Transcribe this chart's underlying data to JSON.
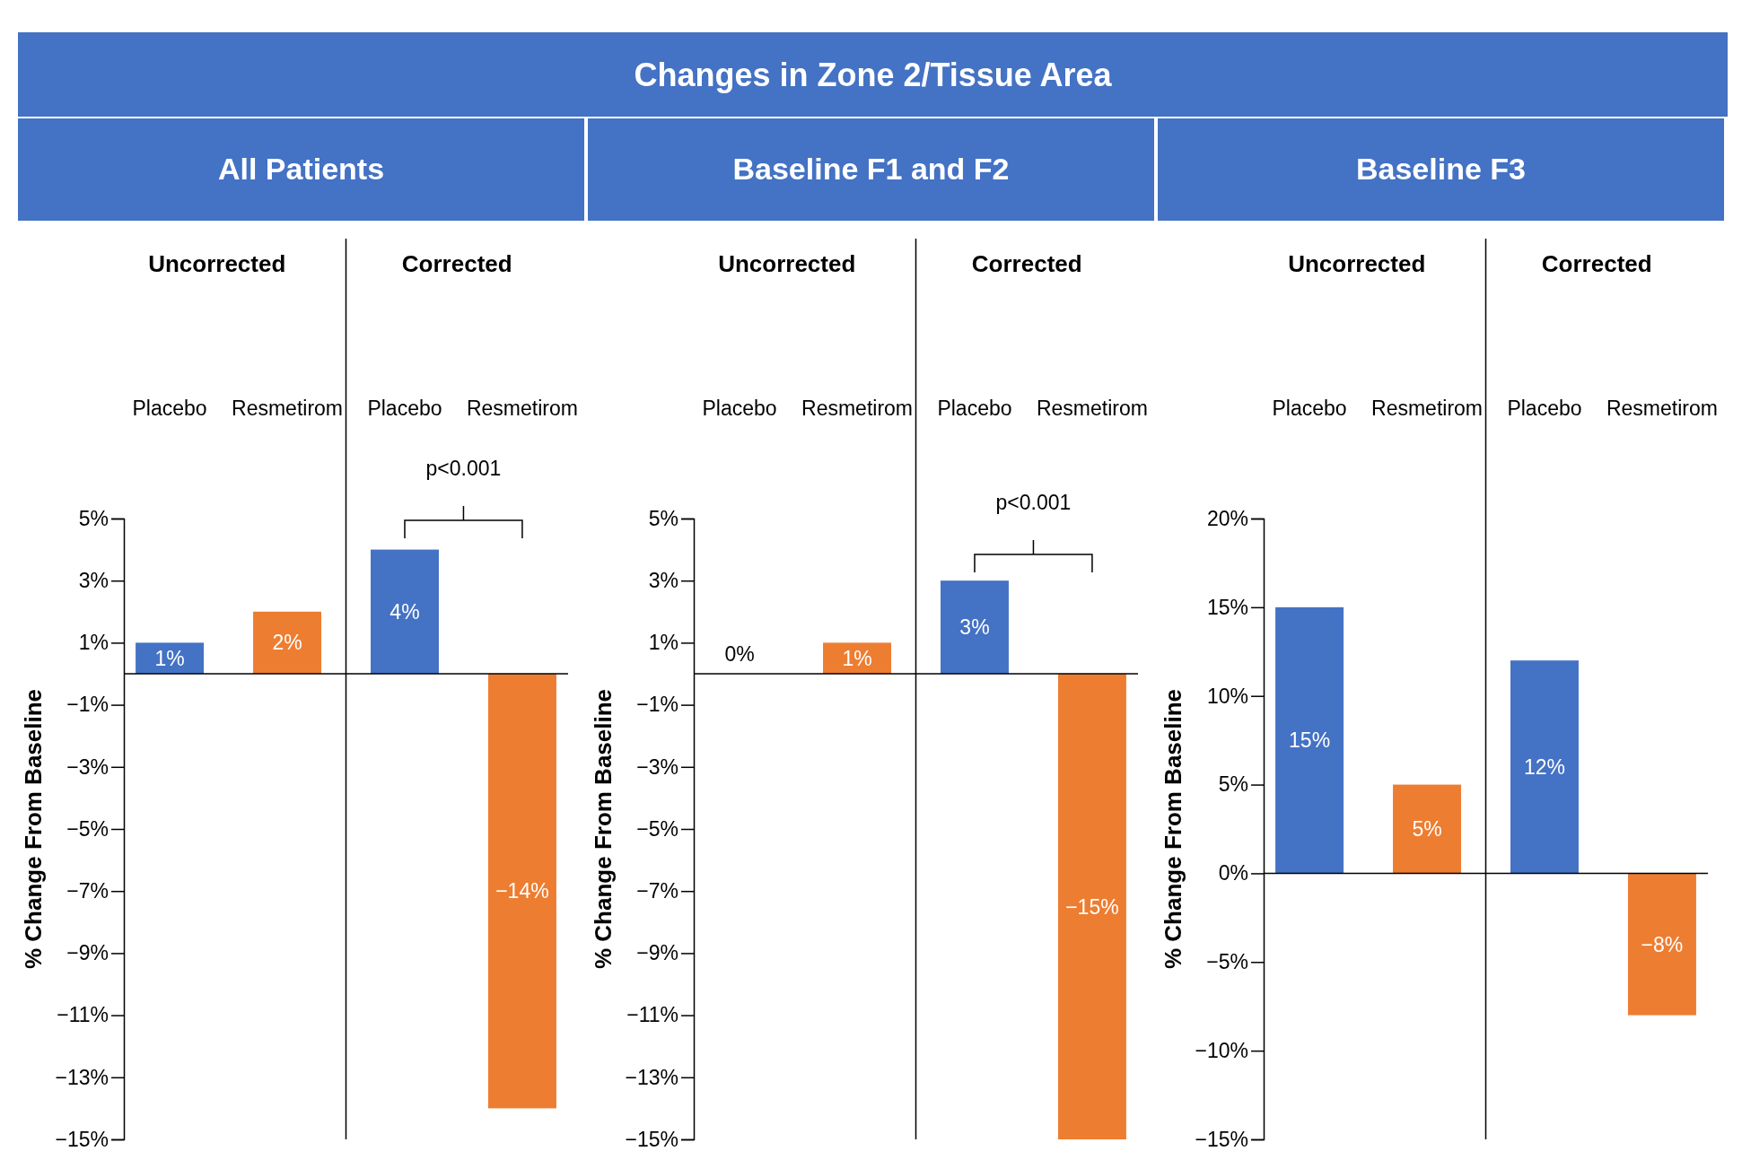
{
  "chart_data": [
    {
      "type": "other",
      "title": "Changes in Zone 2/Tissue Area"
    },
    {
      "type": "bar",
      "title": "All Patients",
      "ylabel": "% Change From Baseline",
      "categories": [
        "Placebo",
        "Resmetirom",
        "Placebo",
        "Resmetirom"
      ],
      "values": [
        1,
        2,
        4,
        -14
      ],
      "colors": [
        "#4472c4",
        "#ed7d31",
        "#4472c4",
        "#ed7d31"
      ],
      "value_labels": [
        "1%",
        "2%",
        "4%",
        "−14%"
      ],
      "ylim": [
        -15,
        5
      ],
      "yticks": [
        {
          "value": -15,
          "label": "−15%"
        },
        {
          "value": -13,
          "label": "−13%"
        },
        {
          "value": -11,
          "label": "−11%"
        },
        {
          "value": -9,
          "label": "−9%"
        },
        {
          "value": -7,
          "label": "−7%"
        },
        {
          "value": -5,
          "label": "−5%"
        },
        {
          "value": -3,
          "label": "−3%"
        },
        {
          "value": -1,
          "label": "−1%"
        },
        {
          "value": 1,
          "label": "1%"
        },
        {
          "value": 3,
          "label": "3%"
        },
        {
          "value": 5,
          "label": "5%"
        }
      ],
      "annotations": [
        "Uncorrected",
        "Corrected",
        "p<0.001"
      ]
    },
    {
      "type": "bar",
      "title": "Baseline F1 and F2",
      "ylabel": "% Change From Baseline",
      "categories": [
        "Placebo",
        "Resmetirom",
        "Placebo",
        "Resmetirom"
      ],
      "values": [
        0,
        1,
        3,
        -15
      ],
      "colors": [
        "#4472c4",
        "#ed7d31",
        "#4472c4",
        "#ed7d31"
      ],
      "value_labels": [
        "0%",
        "1%",
        "3%",
        "−15%"
      ],
      "ylim": [
        -15,
        5
      ],
      "yticks": [
        {
          "value": -15,
          "label": "−15%"
        },
        {
          "value": -13,
          "label": "−13%"
        },
        {
          "value": -11,
          "label": "−11%"
        },
        {
          "value": -9,
          "label": "−9%"
        },
        {
          "value": -7,
          "label": "−7%"
        },
        {
          "value": -5,
          "label": "−5%"
        },
        {
          "value": -3,
          "label": "−3%"
        },
        {
          "value": -1,
          "label": "−1%"
        },
        {
          "value": 1,
          "label": "1%"
        },
        {
          "value": 3,
          "label": "3%"
        },
        {
          "value": 5,
          "label": "5%"
        }
      ],
      "annotations": [
        "Uncorrected",
        "Corrected",
        "p<0.001"
      ]
    },
    {
      "type": "bar",
      "title": "Baseline F3",
      "ylabel": "% Change From Baseline",
      "categories": [
        "Placebo",
        "Resmetirom",
        "Placebo",
        "Resmetirom"
      ],
      "values": [
        15,
        5,
        12,
        -8
      ],
      "colors": [
        "#4472c4",
        "#ed7d31",
        "#4472c4",
        "#ed7d31"
      ],
      "value_labels": [
        "15%",
        "5%",
        "12%",
        "−8%"
      ],
      "ylim": [
        -15,
        20
      ],
      "yticks": [
        {
          "value": -15,
          "label": "−15%"
        },
        {
          "value": -10,
          "label": "−10%"
        },
        {
          "value": -5,
          "label": "−5%"
        },
        {
          "value": 0,
          "label": "0%"
        },
        {
          "value": 5,
          "label": "5%"
        },
        {
          "value": 10,
          "label": "10%"
        },
        {
          "value": 15,
          "label": "15%"
        },
        {
          "value": 20,
          "label": "20%"
        }
      ],
      "annotations": [
        "Uncorrected",
        "Corrected"
      ]
    }
  ]
}
